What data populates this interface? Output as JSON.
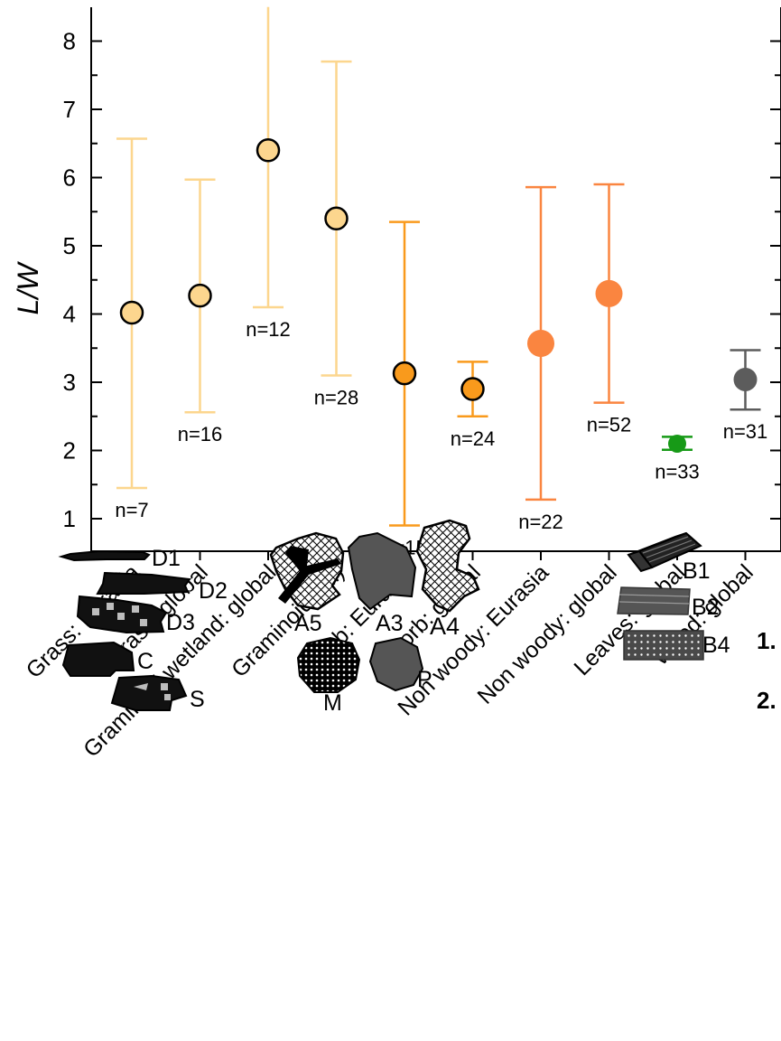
{
  "chart_data": {
    "type": "scatter",
    "ylabel": "L/W",
    "ylim": [
      0.5,
      8.5
    ],
    "yticks": [
      1,
      2,
      3,
      4,
      5,
      6,
      7,
      8
    ],
    "categories": [
      "Grass: Eurasia",
      "Grass: global",
      "Graminoid wetland: global",
      "Graminoid (all)",
      "Forb: Eurasia",
      "Forb: global",
      "Non woody: Eurasia",
      "Non woody: global",
      "Leaves: global",
      "Wood: global"
    ],
    "points": [
      {
        "category": "Grass: Eurasia",
        "mean": 4.02,
        "low": 1.45,
        "high": 6.57,
        "n_label": "n=7",
        "color": "#fcd68e",
        "marker": "outlined"
      },
      {
        "category": "Grass: global",
        "mean": 4.27,
        "low": 2.56,
        "high": 5.97,
        "n_label": "n=16",
        "color": "#fcd68e",
        "marker": "outlined"
      },
      {
        "category": "Graminoid wetland: global",
        "mean": 6.4,
        "low": 4.1,
        "high": 8.5,
        "n_label": "n=12",
        "color": "#fcd68e",
        "marker": "outlined"
      },
      {
        "category": "Graminoid (all)",
        "mean": 5.4,
        "low": 3.1,
        "high": 7.7,
        "n_label": "n=28",
        "color": "#fcd68e",
        "marker": "outlined"
      },
      {
        "category": "Forb: Eurasia",
        "mean": 3.13,
        "low": 0.9,
        "high": 5.35,
        "n_label": "n=15",
        "color": "#f99a1c",
        "marker": "outlined"
      },
      {
        "category": "Forb: global",
        "mean": 2.9,
        "low": 2.5,
        "high": 3.3,
        "n_label": "n=24",
        "color": "#f99a1c",
        "marker": "outlined"
      },
      {
        "category": "Non woody: Eurasia",
        "mean": 3.57,
        "low": 1.28,
        "high": 5.86,
        "n_label": "n=22",
        "color": "#fa8540",
        "marker": "filled"
      },
      {
        "category": "Non woody: global",
        "mean": 4.3,
        "low": 2.7,
        "high": 5.9,
        "n_label": "n=52",
        "color": "#fa8540",
        "marker": "filled"
      },
      {
        "category": "Leaves: global",
        "mean": 2.1,
        "low": 2.01,
        "high": 2.2,
        "n_label": "n=33",
        "color": "#179a17",
        "marker": "filled"
      },
      {
        "category": "Wood: global",
        "mean": 3.04,
        "low": 2.6,
        "high": 3.47,
        "n_label": "n=31",
        "color": "#5c5c5c",
        "marker": "filled"
      }
    ]
  },
  "shape_legend": {
    "labels": {
      "D1": "D1",
      "D2": "D2",
      "D3": "D3",
      "C": "C",
      "S": "S",
      "A5": "A5",
      "A3": "A3",
      "A4": "A4",
      "M": "M",
      "P": "P",
      "B1": "B1",
      "B2": "B2",
      "B4": "B4"
    },
    "numbers": [
      "1.",
      "2."
    ]
  }
}
